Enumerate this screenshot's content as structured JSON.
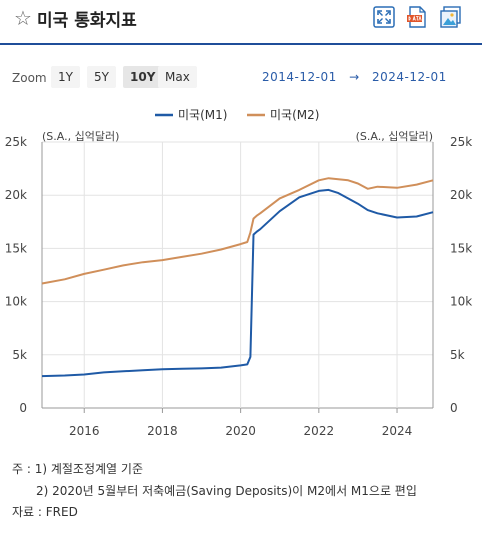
{
  "header": {
    "title": "미국 통화지표",
    "icons": [
      "star-icon",
      "fullscreen-icon",
      "data-download-icon",
      "image-download-icon"
    ]
  },
  "toolbar": {
    "zoom_label": "Zoom",
    "zoom_options": [
      "1Y",
      "5Y",
      "10Y",
      "Max"
    ],
    "zoom_selected": "10Y",
    "date_from": "2014-12-01",
    "date_arrow": "→",
    "date_to": "2024-12-01"
  },
  "chart_data": {
    "type": "line",
    "unit_left": "(S.A., 십억달러)",
    "unit_right": "(S.A., 십억달러)",
    "y_ticks": [
      "0",
      "5k",
      "10k",
      "15k",
      "20k",
      "25k"
    ],
    "x_ticks": [
      "2016",
      "2018",
      "2020",
      "2022",
      "2024"
    ],
    "ylim": [
      0,
      25000
    ],
    "xlim": [
      2014.92,
      2024.92
    ],
    "grid": true,
    "legend_position": "top-center",
    "series": [
      {
        "name": "미국(M1)",
        "color": "#1f5aa6",
        "x": [
          2014.92,
          2015.5,
          2016.0,
          2016.5,
          2017.0,
          2017.5,
          2018.0,
          2018.5,
          2019.0,
          2019.5,
          2020.0,
          2020.17,
          2020.25,
          2020.33,
          2020.42,
          2020.5,
          2021.0,
          2021.5,
          2022.0,
          2022.25,
          2022.5,
          2023.0,
          2023.25,
          2023.5,
          2024.0,
          2024.5,
          2024.92
        ],
        "y": [
          3000,
          3050,
          3150,
          3350,
          3450,
          3550,
          3650,
          3680,
          3720,
          3800,
          4000,
          4100,
          4800,
          16300,
          16600,
          16800,
          18500,
          19800,
          20400,
          20500,
          20200,
          19200,
          18600,
          18300,
          17900,
          18000,
          18400
        ]
      },
      {
        "name": "미국(M2)",
        "color": "#d08f5a",
        "x": [
          2014.92,
          2015.5,
          2016.0,
          2016.5,
          2017.0,
          2017.5,
          2018.0,
          2018.5,
          2019.0,
          2019.5,
          2020.0,
          2020.17,
          2020.25,
          2020.33,
          2020.42,
          2020.5,
          2021.0,
          2021.5,
          2022.0,
          2022.25,
          2022.5,
          2022.75,
          2023.0,
          2023.25,
          2023.5,
          2024.0,
          2024.5,
          2024.92
        ],
        "y": [
          11700,
          12100,
          12600,
          13000,
          13400,
          13700,
          13900,
          14200,
          14500,
          14900,
          15400,
          15600,
          16500,
          17800,
          18100,
          18300,
          19700,
          20500,
          21400,
          21600,
          21500,
          21400,
          21100,
          20600,
          20800,
          20700,
          21000,
          21400
        ]
      }
    ]
  },
  "notes": {
    "line1": "주 : 1)  계절조정계열 기준",
    "line2": "2)  2020년 5월부터 저축예금(Saving Deposits)이 M2에서 M1으로 편입",
    "line3": "자료 :  FRED"
  }
}
